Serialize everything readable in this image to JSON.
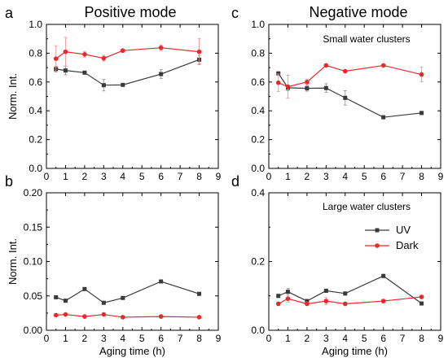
{
  "figure": {
    "col_titles": [
      "Positive mode",
      "Negative mode"
    ],
    "series_legend": [
      {
        "name": "UV",
        "color": "#3a3a3a",
        "marker": "square"
      },
      {
        "name": "Dark",
        "color": "#e8282b",
        "marker": "circle"
      }
    ]
  },
  "chart_data": [
    {
      "panel": "a",
      "type": "line",
      "title": "",
      "xlabel": "",
      "ylabel": "Norm. Int.",
      "xlim": [
        0,
        9
      ],
      "ylim": [
        0.0,
        1.0
      ],
      "xticks": [
        0,
        1,
        2,
        3,
        4,
        5,
        6,
        7,
        8,
        9
      ],
      "yticks": [
        "0.0",
        "0.2",
        "0.4",
        "0.6",
        "0.8",
        "1.0"
      ],
      "grid": false,
      "series": [
        {
          "name": "UV",
          "color": "#3a3a3a",
          "marker": "square",
          "x": [
            0.5,
            1,
            2,
            3,
            4,
            6,
            8
          ],
          "y": [
            0.69,
            0.68,
            0.665,
            0.578,
            0.58,
            0.655,
            0.755
          ],
          "err": [
            0.02,
            0.03,
            0.01,
            0.04,
            0.01,
            0.03,
            0.03
          ]
        },
        {
          "name": "Dark",
          "color": "#e8282b",
          "marker": "circle",
          "x": [
            0.5,
            1,
            2,
            3,
            4,
            6,
            8
          ],
          "y": [
            0.762,
            0.81,
            0.792,
            0.765,
            0.818,
            0.838,
            0.81
          ],
          "err": [
            0.09,
            0.1,
            0.02,
            0.02,
            0.01,
            0.02,
            0.09
          ]
        }
      ]
    },
    {
      "panel": "c",
      "type": "line",
      "title": "",
      "annotation": "Small water clusters",
      "xlabel": "",
      "ylabel": "",
      "xlim": [
        0,
        9
      ],
      "ylim": [
        0.0,
        1.0
      ],
      "xticks": [
        0,
        1,
        2,
        3,
        4,
        5,
        6,
        7,
        8,
        9
      ],
      "yticks": [
        "0.0",
        "0.2",
        "0.4",
        "0.6",
        "0.8",
        "1.0"
      ],
      "grid": false,
      "series": [
        {
          "name": "UV",
          "color": "#3a3a3a",
          "marker": "square",
          "x": [
            0.5,
            1,
            2,
            3,
            4,
            6,
            8
          ],
          "y": [
            0.66,
            0.56,
            0.556,
            0.558,
            0.49,
            0.355,
            0.385
          ],
          "err": [
            0.01,
            0.02,
            0.02,
            0.03,
            0.05,
            0.01,
            0.01
          ]
        },
        {
          "name": "Dark",
          "color": "#e8282b",
          "marker": "circle",
          "x": [
            0.5,
            1,
            2,
            3,
            4,
            6,
            8
          ],
          "y": [
            0.595,
            0.567,
            0.6,
            0.715,
            0.675,
            0.715,
            0.652
          ],
          "err": [
            0.06,
            0.08,
            0.02,
            0.01,
            0.01,
            0.01,
            0.05
          ]
        }
      ]
    },
    {
      "panel": "b",
      "type": "line",
      "title": "",
      "xlabel": "Aging time (h)",
      "ylabel": "Norm. Int.",
      "xlim": [
        0,
        9
      ],
      "ylim": [
        0.0,
        0.2
      ],
      "xticks": [
        0,
        1,
        2,
        3,
        4,
        5,
        6,
        7,
        8,
        9
      ],
      "yticks": [
        "0.00",
        "0.05",
        "0.10",
        "0.15",
        "0.20"
      ],
      "grid": false,
      "series": [
        {
          "name": "UV",
          "color": "#3a3a3a",
          "marker": "square",
          "x": [
            0.5,
            1,
            2,
            3,
            4,
            6,
            8
          ],
          "y": [
            0.048,
            0.043,
            0.06,
            0.04,
            0.047,
            0.071,
            0.053
          ],
          "err": [
            0.002,
            0.002,
            0.002,
            0.002,
            0.002,
            0.002,
            0.002
          ]
        },
        {
          "name": "Dark",
          "color": "#e8282b",
          "marker": "circle",
          "x": [
            0.5,
            1,
            2,
            3,
            4,
            6,
            8
          ],
          "y": [
            0.022,
            0.023,
            0.02,
            0.023,
            0.019,
            0.02,
            0.019
          ],
          "err": [
            0.001,
            0.001,
            0.001,
            0.001,
            0.001,
            0.001,
            0.001
          ]
        }
      ]
    },
    {
      "panel": "d",
      "type": "line",
      "title": "",
      "annotation": "Large water clusters",
      "xlabel": "Aging time (h)",
      "ylabel": "",
      "xlim": [
        0,
        9
      ],
      "ylim": [
        0.0,
        0.4
      ],
      "xticks": [
        0,
        1,
        2,
        3,
        4,
        5,
        6,
        7,
        8,
        9
      ],
      "yticks": [
        "0.0",
        "0.2",
        "0.4"
      ],
      "grid": false,
      "legend": "center-right",
      "series": [
        {
          "name": "UV",
          "color": "#3a3a3a",
          "marker": "square",
          "x": [
            0.5,
            1,
            2,
            3,
            4,
            6,
            8
          ],
          "y": [
            0.1,
            0.112,
            0.085,
            0.115,
            0.107,
            0.158,
            0.078
          ],
          "err": [
            0.005,
            0.01,
            0.005,
            0.005,
            0.005,
            0.005,
            0.005
          ]
        },
        {
          "name": "Dark",
          "color": "#e8282b",
          "marker": "circle",
          "x": [
            0.5,
            1,
            2,
            3,
            4,
            6,
            8
          ],
          "y": [
            0.077,
            0.092,
            0.077,
            0.085,
            0.077,
            0.085,
            0.097
          ],
          "err": [
            0.005,
            0.01,
            0.005,
            0.01,
            0.005,
            0.005,
            0.005
          ]
        }
      ]
    }
  ]
}
